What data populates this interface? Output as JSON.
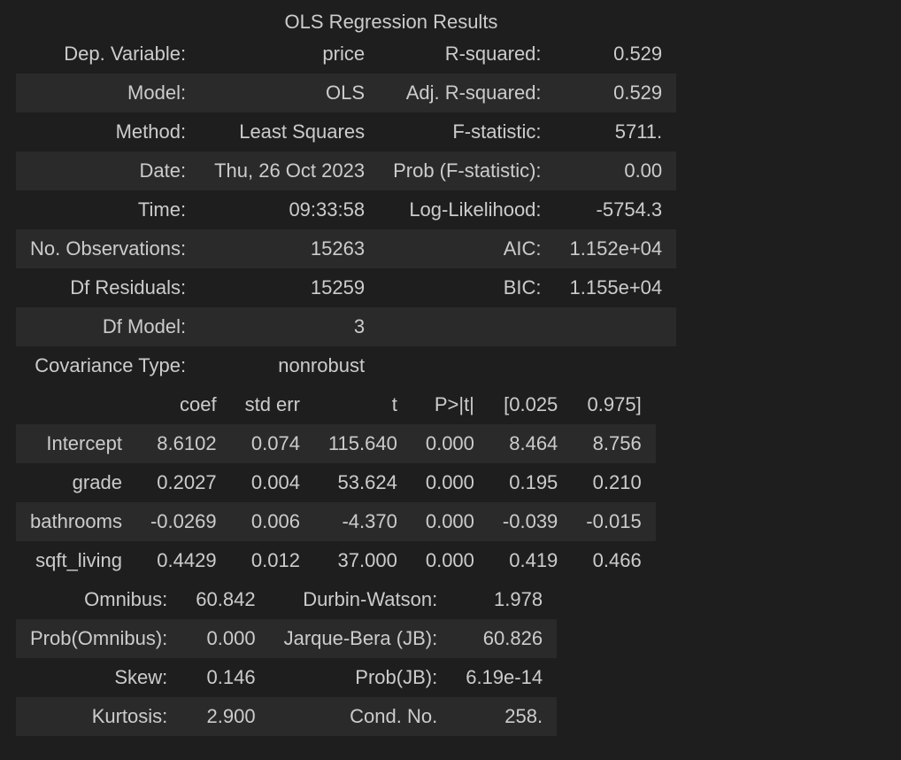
{
  "caption": "OLS Regression Results",
  "summary": [
    [
      "Dep. Variable:",
      "price",
      "R-squared:",
      "0.529"
    ],
    [
      "Model:",
      "OLS",
      "Adj. R-squared:",
      "0.529"
    ],
    [
      "Method:",
      "Least Squares",
      "F-statistic:",
      "5711."
    ],
    [
      "Date:",
      "Thu, 26 Oct 2023",
      "Prob (F-statistic):",
      "0.00"
    ],
    [
      "Time:",
      "09:33:58",
      "Log-Likelihood:",
      "-5754.3"
    ],
    [
      "No. Observations:",
      "15263",
      "AIC:",
      "1.152e+04"
    ],
    [
      "Df Residuals:",
      "15259",
      "BIC:",
      "1.155e+04"
    ],
    [
      "Df Model:",
      "3",
      "",
      ""
    ],
    [
      "Covariance Type:",
      "nonrobust",
      "",
      ""
    ]
  ],
  "coef_table": {
    "headers": [
      "",
      "coef",
      "std err",
      "t",
      "P>|t|",
      "[0.025",
      "0.975]"
    ],
    "rows": [
      [
        "Intercept",
        "8.6102",
        "0.074",
        "115.640",
        "0.000",
        "8.464",
        "8.756"
      ],
      [
        "grade",
        "0.2027",
        "0.004",
        "53.624",
        "0.000",
        "0.195",
        "0.210"
      ],
      [
        "bathrooms",
        "-0.0269",
        "0.006",
        "-4.370",
        "0.000",
        "-0.039",
        "-0.015"
      ],
      [
        "sqft_living",
        "0.4429",
        "0.012",
        "37.000",
        "0.000",
        "0.419",
        "0.466"
      ]
    ]
  },
  "diagnostics": [
    [
      "Omnibus:",
      "60.842",
      "Durbin-Watson:",
      "1.978"
    ],
    [
      "Prob(Omnibus):",
      "0.000",
      "Jarque-Bera (JB):",
      "60.826"
    ],
    [
      "Skew:",
      "0.146",
      "Prob(JB):",
      "6.19e-14"
    ],
    [
      "Kurtosis:",
      "2.900",
      "Cond. No.",
      "258."
    ]
  ]
}
